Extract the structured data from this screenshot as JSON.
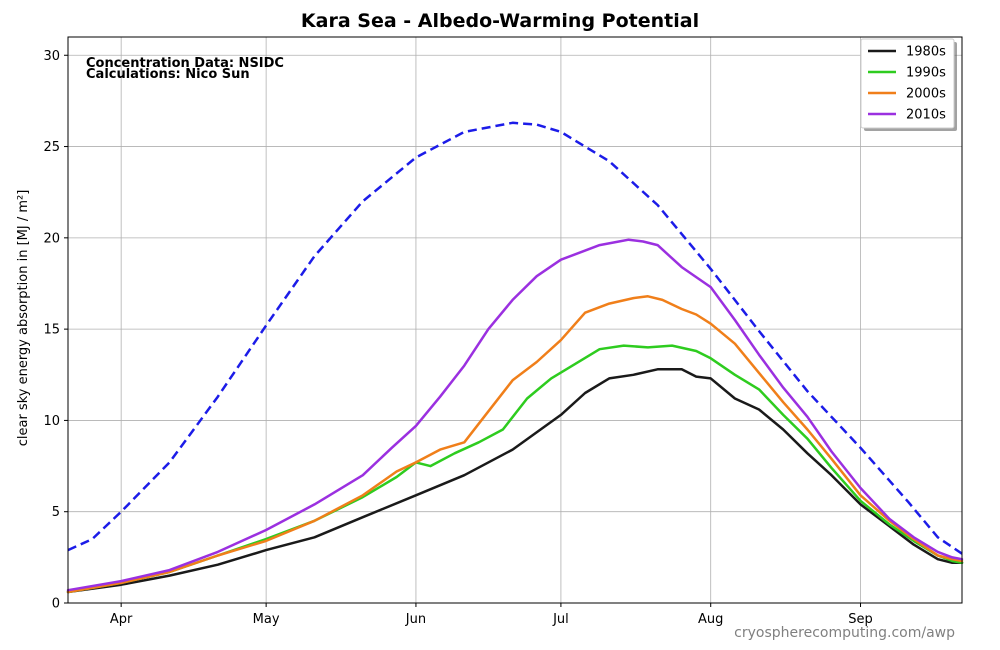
{
  "chart_data": {
    "type": "line",
    "title": "Kara Sea - Albedo-Warming Potential",
    "ylabel": "clear sky energy absorption in  [MJ / m²]",
    "xlabel": "",
    "annotation_line1": "Concentration Data: NSIDC",
    "annotation_line2": "Calculations: Nico Sun",
    "watermark": "cryospherecomputing.com/awp",
    "x_unit": "day of year",
    "xlim": [
      80,
      265
    ],
    "ylim": [
      0,
      31
    ],
    "x_ticks": [
      {
        "label": "Apr",
        "x": 91
      },
      {
        "label": "May",
        "x": 121
      },
      {
        "label": "Jun",
        "x": 152
      },
      {
        "label": "Jul",
        "x": 182
      },
      {
        "label": "Aug",
        "x": 213
      },
      {
        "label": "Sep",
        "x": 244
      }
    ],
    "y_ticks": [
      0,
      5,
      10,
      15,
      20,
      25,
      30
    ],
    "grid": true,
    "legend_position": "top-right",
    "series": [
      {
        "name": "1980s",
        "color": "#1a1a1a",
        "dashed": false,
        "in_legend": true,
        "x": [
          80,
          91,
          101,
          111,
          121,
          131,
          141,
          152,
          162,
          172,
          182,
          187,
          192,
          197,
          202,
          207,
          210,
          213,
          218,
          223,
          228,
          233,
          238,
          244,
          250,
          255,
          260,
          263,
          265
        ],
        "y": [
          0.6,
          1.0,
          1.5,
          2.1,
          2.9,
          3.6,
          4.7,
          5.9,
          7.0,
          8.4,
          10.3,
          11.5,
          12.3,
          12.5,
          12.8,
          12.8,
          12.4,
          12.3,
          11.2,
          10.6,
          9.5,
          8.2,
          7.0,
          5.4,
          4.2,
          3.2,
          2.4,
          2.2,
          2.2
        ]
      },
      {
        "name": "1990s",
        "color": "#2ecc1f",
        "dashed": false,
        "in_legend": true,
        "x": [
          80,
          91,
          101,
          111,
          121,
          131,
          141,
          148,
          152,
          155,
          160,
          165,
          170,
          175,
          180,
          185,
          190,
          195,
          200,
          205,
          210,
          213,
          218,
          223,
          228,
          233,
          238,
          244,
          250,
          255,
          260,
          263,
          265
        ],
        "y": [
          0.6,
          1.1,
          1.7,
          2.6,
          3.5,
          4.5,
          5.8,
          6.9,
          7.7,
          7.5,
          8.2,
          8.8,
          9.5,
          11.2,
          12.3,
          13.1,
          13.9,
          14.1,
          14.0,
          14.1,
          13.8,
          13.4,
          12.5,
          11.7,
          10.3,
          9.0,
          7.4,
          5.6,
          4.3,
          3.4,
          2.6,
          2.3,
          2.2
        ]
      },
      {
        "name": "2000s",
        "color": "#f07f1a",
        "dashed": false,
        "in_legend": true,
        "x": [
          80,
          91,
          101,
          111,
          121,
          131,
          141,
          148,
          152,
          157,
          162,
          167,
          172,
          177,
          182,
          187,
          192,
          197,
          200,
          203,
          207,
          210,
          213,
          218,
          223,
          228,
          233,
          238,
          244,
          250,
          255,
          260,
          263,
          265
        ],
        "y": [
          0.6,
          1.1,
          1.7,
          2.6,
          3.4,
          4.5,
          5.9,
          7.2,
          7.7,
          8.4,
          8.8,
          10.5,
          12.2,
          13.2,
          14.4,
          15.9,
          16.4,
          16.7,
          16.8,
          16.6,
          16.1,
          15.8,
          15.3,
          14.2,
          12.6,
          11.0,
          9.5,
          7.9,
          5.9,
          4.5,
          3.5,
          2.6,
          2.4,
          2.3
        ]
      },
      {
        "name": "2010s",
        "color": "#9b30e0",
        "dashed": false,
        "in_legend": true,
        "x": [
          80,
          91,
          101,
          111,
          121,
          131,
          141,
          147,
          152,
          157,
          162,
          167,
          172,
          177,
          182,
          187,
          190,
          194,
          196,
          199,
          202,
          207,
          213,
          218,
          223,
          228,
          233,
          238,
          244,
          250,
          255,
          260,
          263,
          265
        ],
        "y": [
          0.7,
          1.2,
          1.8,
          2.8,
          4.0,
          5.4,
          7.0,
          8.5,
          9.7,
          11.3,
          13.0,
          15.0,
          16.6,
          17.9,
          18.8,
          19.3,
          19.6,
          19.8,
          19.9,
          19.8,
          19.6,
          18.4,
          17.3,
          15.5,
          13.6,
          11.8,
          10.2,
          8.3,
          6.3,
          4.6,
          3.6,
          2.8,
          2.5,
          2.4
        ]
      },
      {
        "name": "",
        "color": "#1c1ce8",
        "dashed": true,
        "in_legend": false,
        "x": [
          80,
          85,
          91,
          101,
          111,
          121,
          131,
          141,
          152,
          162,
          172,
          177,
          182,
          192,
          202,
          213,
          223,
          233,
          244,
          254,
          260,
          265
        ],
        "y": [
          2.9,
          3.5,
          5.0,
          7.7,
          11.3,
          15.2,
          19.0,
          22.0,
          24.4,
          25.8,
          26.3,
          26.2,
          25.8,
          24.2,
          21.8,
          18.3,
          14.9,
          11.6,
          8.5,
          5.5,
          3.6,
          2.7
        ]
      }
    ]
  }
}
